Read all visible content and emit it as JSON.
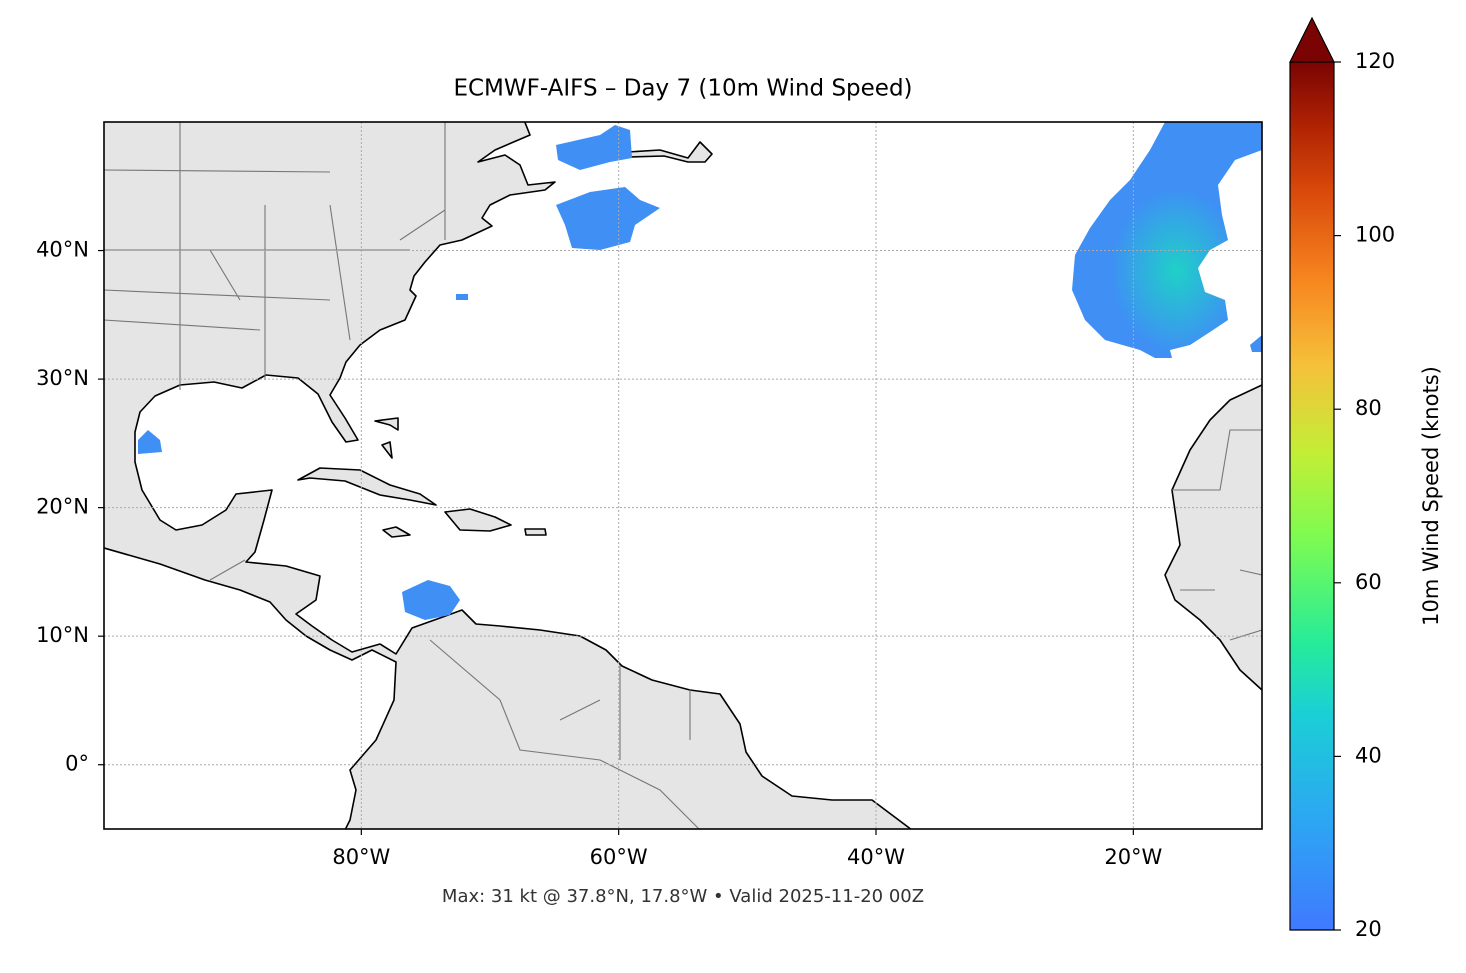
{
  "chart_data": {
    "type": "map",
    "title": "ECMWF-AIFS – Day 7 (10m Wind Speed)",
    "xlim": [
      -100,
      -10
    ],
    "ylim": [
      -5,
      50
    ],
    "xticks": [
      {
        "value": -80,
        "label": "80°W"
      },
      {
        "value": -60,
        "label": "60°W"
      },
      {
        "value": -40,
        "label": "40°W"
      },
      {
        "value": -20,
        "label": "20°W"
      }
    ],
    "yticks": [
      {
        "value": 0,
        "label": "0°"
      },
      {
        "value": 10,
        "label": "10°N"
      },
      {
        "value": 20,
        "label": "20°N"
      },
      {
        "value": 30,
        "label": "30°N"
      },
      {
        "value": 40,
        "label": "40°N"
      }
    ],
    "grid": true,
    "annotation": "Max: 31 kt @ 37.8°N, 17.8°W • Valid 2025-11-20 00Z",
    "colorbar": {
      "label": "10m Wind Speed (knots)",
      "lim": [
        20,
        120
      ],
      "ticks": [
        20,
        40,
        60,
        80,
        100,
        120
      ],
      "extend": "max"
    }
  }
}
